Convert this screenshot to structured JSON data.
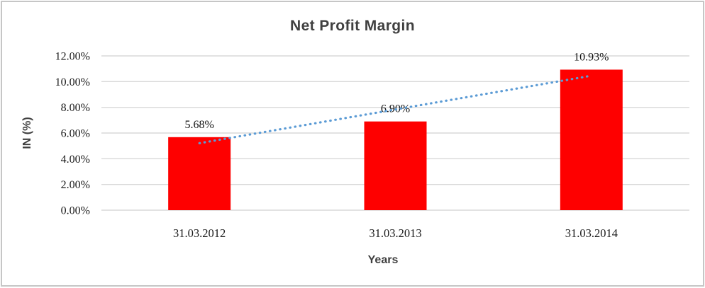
{
  "chart_data": {
    "type": "bar",
    "title": "Net Profit Margin",
    "xlabel": "Years",
    "ylabel": "IN (%)",
    "categories": [
      "31.03.2012",
      "31.03.2013",
      "31.03.2014"
    ],
    "values": [
      5.68,
      6.9,
      10.93
    ],
    "data_labels": [
      "5.68%",
      "6.90%",
      "10.93%"
    ],
    "ylim": [
      0,
      12
    ],
    "yticks": [
      {
        "value": 0,
        "label": "0.00%"
      },
      {
        "value": 2,
        "label": "2.00%"
      },
      {
        "value": 4,
        "label": "4.00%"
      },
      {
        "value": 6,
        "label": "6.00%"
      },
      {
        "value": 8,
        "label": "8.00%"
      },
      {
        "value": 10,
        "label": "10.00%"
      },
      {
        "value": 12,
        "label": "12.00%"
      }
    ],
    "grid": true,
    "legend": "none",
    "trendline": {
      "type": "linear",
      "style": "dotted",
      "start_value": 5.21,
      "end_value": 10.46
    },
    "colors": {
      "bar": "#fe0000",
      "gridline": "#d9d9d9",
      "trendline": "#5b9bd5",
      "title_text": "#404040",
      "label_text": "#1a1a1a",
      "data_label_text": "#111111",
      "border": "#c6c6c6",
      "background": "#ffffff"
    }
  }
}
